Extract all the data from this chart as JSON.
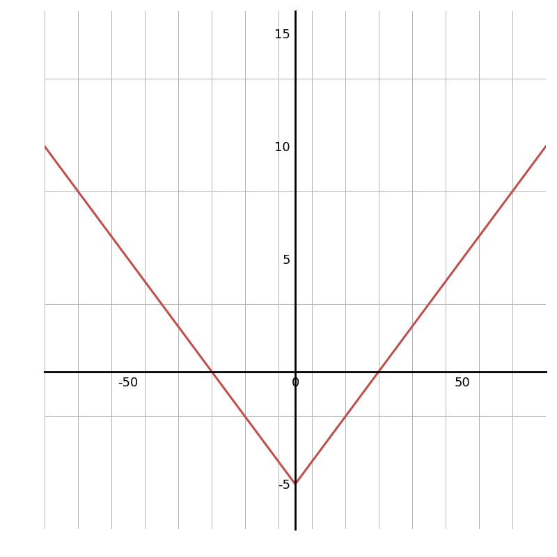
{
  "function": "abs(x)/5 - 5",
  "x_min": -75,
  "x_max": 75,
  "y_min": -7,
  "y_max": 16,
  "line_color": "#c0504d",
  "line_width": 2.2,
  "background_color": "#ffffff",
  "grid_color": "#b0b0b0",
  "grid_linewidth": 0.7,
  "axis_color": "#000000",
  "axis_linewidth": 2.0,
  "tick_labelsize": 13,
  "x_ticks_labeled": [
    -50,
    0,
    50
  ],
  "y_ticks_labeled": [
    -5,
    5,
    10,
    15
  ],
  "x_grid_step": 10,
  "y_grid_step": 5,
  "figsize": [
    8.0,
    8.0
  ],
  "dpi": 100
}
